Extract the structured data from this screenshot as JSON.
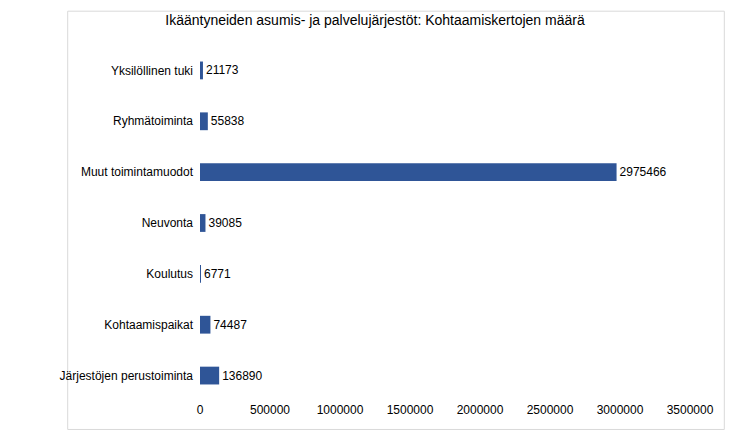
{
  "chart_data": {
    "type": "bar",
    "orientation": "horizontal",
    "title": "Ikääntyneiden asumis- ja palvelujärjestöt: Kohtaamiskertojen määrä",
    "categories": [
      "Yksilöllinen tuki",
      "Ryhmätoiminta",
      "Muut toimintamuodot",
      "Neuvonta",
      "Koulutus",
      "Kohtaamispaikat",
      "Järjestöjen perustoiminta"
    ],
    "values": [
      21173,
      55838,
      2975466,
      39085,
      6771,
      74487,
      136890
    ],
    "color": "#2f5597",
    "xlim": [
      0,
      3500000
    ],
    "xticks": [
      0,
      500000,
      1000000,
      1500000,
      2000000,
      2500000,
      3000000,
      3500000
    ],
    "grid": false,
    "data_labels": true
  }
}
